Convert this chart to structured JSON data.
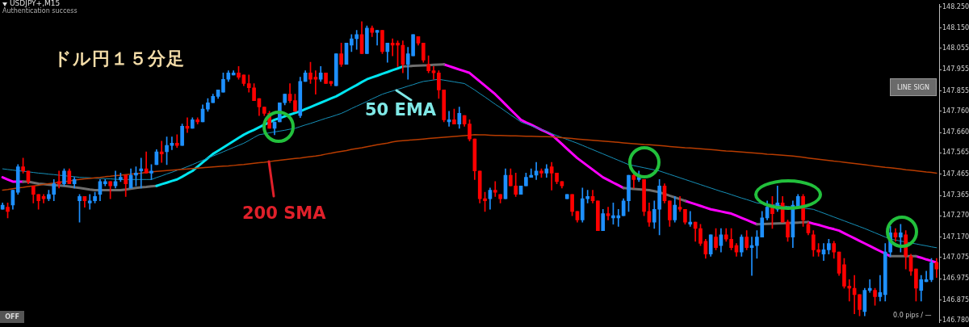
{
  "chart_data": {
    "type": "candlestick",
    "title": "USDJPY+,M15",
    "categories": [
      null,
      null,
      null,
      null,
      null,
      null,
      null,
      null,
      null,
      null,
      null,
      null,
      null,
      null,
      null,
      null,
      null,
      null,
      null,
      null,
      null,
      null,
      null,
      null,
      null,
      null,
      null,
      null,
      null,
      null,
      null,
      null,
      null,
      null,
      null,
      null,
      null,
      null,
      null,
      null,
      null,
      null,
      null,
      null,
      null,
      null,
      null,
      null,
      null,
      null,
      null,
      null,
      null,
      null,
      null,
      null,
      null,
      null,
      null,
      null,
      null,
      null,
      null,
      null,
      null,
      null,
      null,
      null,
      null,
      null,
      null,
      null,
      null,
      null,
      null,
      null,
      null,
      null,
      null,
      null,
      null,
      null,
      null,
      null,
      null,
      null,
      null,
      null,
      null,
      null,
      null,
      null,
      null,
      null,
      null,
      null,
      null,
      null,
      null,
      null,
      null,
      null,
      null,
      null,
      null,
      null,
      null,
      null,
      null,
      null,
      null,
      null,
      null,
      null,
      null,
      null,
      null,
      null,
      null,
      null,
      null,
      null,
      null,
      null,
      null,
      null,
      null,
      null,
      null,
      null,
      null,
      null,
      null,
      null,
      null,
      null,
      null,
      null,
      null,
      null,
      null,
      null,
      null,
      null,
      null,
      null,
      null,
      null,
      null,
      null,
      null,
      null,
      null,
      null,
      null,
      null,
      null,
      null,
      null,
      null,
      null,
      null,
      null,
      null,
      null,
      null,
      null,
      null,
      null,
      null,
      null,
      null,
      null,
      null,
      null,
      null,
      null,
      null,
      null,
      null,
      null,
      null,
      null
    ],
    "ohlc": [
      [
        147.3,
        147.33,
        147.3,
        147.32
      ],
      [
        147.31,
        147.33,
        147.26,
        147.29
      ],
      [
        147.32,
        147.39,
        147.3,
        147.39
      ],
      [
        147.38,
        147.51,
        147.37,
        147.5
      ],
      [
        147.5,
        147.54,
        147.47,
        147.48
      ],
      [
        147.48,
        147.48,
        147.42,
        147.43
      ],
      [
        147.41,
        147.41,
        147.33,
        147.37
      ],
      [
        147.37,
        147.37,
        147.3,
        147.34
      ],
      [
        147.36,
        147.37,
        147.33,
        147.35
      ],
      [
        147.35,
        147.39,
        147.34,
        147.37
      ],
      [
        147.37,
        147.44,
        147.34,
        147.42
      ],
      [
        147.43,
        147.48,
        147.4,
        147.42
      ],
      [
        147.42,
        147.49,
        147.41,
        147.48
      ],
      [
        147.48,
        147.49,
        147.42,
        147.42
      ],
      [
        147.42,
        147.45,
        147.4,
        147.44
      ],
      [
        147.34,
        147.37,
        147.24,
        147.36
      ],
      [
        147.36,
        147.36,
        147.31,
        147.34
      ],
      [
        147.33,
        147.37,
        147.3,
        147.34
      ],
      [
        147.34,
        147.38,
        147.33,
        147.36
      ],
      [
        147.37,
        147.44,
        147.34,
        147.43
      ],
      [
        147.42,
        147.44,
        147.41,
        147.43
      ],
      [
        147.43,
        147.43,
        147.35,
        147.41
      ],
      [
        147.41,
        147.48,
        147.4,
        147.43
      ],
      [
        147.44,
        147.47,
        147.43,
        147.45
      ],
      [
        147.46,
        147.46,
        147.36,
        147.42
      ],
      [
        147.4,
        147.49,
        147.4,
        147.46
      ],
      [
        147.46,
        147.5,
        147.41,
        147.47
      ],
      [
        147.48,
        147.54,
        147.4,
        147.49
      ],
      [
        147.49,
        147.57,
        147.47,
        147.47
      ],
      [
        147.47,
        147.51,
        147.44,
        147.48
      ],
      [
        147.51,
        147.58,
        147.51,
        147.57
      ],
      [
        147.57,
        147.62,
        147.52,
        147.56
      ],
      [
        147.57,
        147.64,
        147.51,
        147.6
      ],
      [
        147.6,
        147.64,
        147.58,
        147.61
      ],
      [
        147.61,
        147.65,
        147.59,
        147.6
      ],
      [
        147.6,
        147.7,
        147.6,
        147.69
      ],
      [
        147.69,
        147.73,
        147.66,
        147.68
      ],
      [
        147.68,
        147.73,
        147.68,
        147.72
      ],
      [
        147.72,
        147.73,
        147.7,
        147.71
      ],
      [
        147.71,
        147.79,
        147.71,
        147.77
      ],
      [
        147.77,
        147.82,
        147.76,
        147.8
      ],
      [
        147.8,
        147.84,
        147.8,
        147.83
      ],
      [
        147.83,
        147.86,
        147.82,
        147.86
      ],
      [
        147.85,
        147.94,
        147.85,
        147.91
      ],
      [
        147.91,
        147.95,
        147.9,
        147.94
      ],
      [
        147.93,
        147.95,
        147.93,
        147.94
      ],
      [
        147.94,
        147.97,
        147.91,
        147.92
      ],
      [
        147.93,
        147.93,
        147.88,
        147.89
      ],
      [
        147.89,
        147.93,
        147.85,
        147.87
      ],
      [
        147.87,
        147.89,
        147.81,
        147.81
      ],
      [
        147.82,
        147.82,
        147.74,
        147.78
      ],
      [
        147.78,
        147.78,
        147.74,
        147.75
      ],
      [
        147.75,
        147.76,
        147.68,
        147.68
      ],
      [
        147.68,
        147.71,
        147.65,
        147.71
      ],
      [
        147.71,
        147.8,
        147.71,
        147.8
      ],
      [
        147.8,
        147.84,
        147.79,
        147.84
      ],
      [
        147.84,
        147.89,
        147.8,
        147.81
      ],
      [
        147.81,
        147.84,
        147.76,
        147.76
      ],
      [
        147.74,
        147.92,
        147.73,
        147.9
      ],
      [
        147.9,
        147.95,
        147.9,
        147.94
      ],
      [
        147.94,
        147.99,
        147.89,
        147.91
      ],
      [
        147.92,
        147.95,
        147.84,
        147.91
      ],
      [
        147.91,
        147.97,
        147.9,
        147.94
      ],
      [
        147.94,
        147.94,
        147.89,
        147.89
      ],
      [
        147.9,
        147.9,
        147.88,
        147.89
      ],
      [
        147.88,
        148.03,
        147.88,
        148.03
      ],
      [
        148.03,
        148.08,
        147.97,
        147.98
      ],
      [
        147.98,
        148.08,
        147.98,
        148.08
      ],
      [
        148.07,
        148.12,
        148.04,
        148.1
      ],
      [
        148.1,
        148.14,
        148.05,
        148.12
      ],
      [
        148.12,
        148.18,
        148.03,
        148.03
      ],
      [
        148.03,
        148.16,
        148.03,
        148.15
      ],
      [
        148.15,
        148.16,
        148.11,
        148.13
      ],
      [
        148.13,
        148.14,
        148.07,
        148.14
      ],
      [
        148.14,
        148.14,
        148.03,
        148.04
      ],
      [
        148.04,
        148.08,
        147.99,
        148.08
      ],
      [
        148.08,
        148.1,
        148.02,
        148.07
      ],
      [
        148.08,
        148.09,
        147.97,
        148.07
      ],
      [
        148.07,
        148.09,
        147.94,
        147.98
      ],
      [
        147.98,
        148.06,
        147.91,
        148.03
      ],
      [
        148.02,
        148.12,
        148.02,
        148.12
      ],
      [
        148.11,
        148.11,
        148.07,
        148.08
      ],
      [
        148.08,
        148.08,
        147.99,
        148.0
      ],
      [
        147.98,
        148.02,
        147.94,
        147.95
      ],
      [
        147.95,
        147.97,
        147.91,
        147.94
      ],
      [
        147.94,
        147.95,
        147.82,
        147.86
      ],
      [
        147.86,
        147.86,
        147.71,
        147.72
      ],
      [
        147.71,
        147.76,
        147.69,
        147.72
      ],
      [
        147.72,
        147.77,
        147.7,
        147.7
      ],
      [
        147.7,
        147.78,
        147.68,
        147.75
      ],
      [
        147.74,
        147.74,
        147.69,
        147.7
      ],
      [
        147.7,
        147.72,
        147.62,
        147.63
      ],
      [
        147.63,
        147.63,
        147.44,
        147.48
      ],
      [
        147.48,
        147.48,
        147.33,
        147.35
      ],
      [
        147.35,
        147.38,
        147.29,
        147.34
      ],
      [
        147.35,
        147.4,
        147.3,
        147.39
      ],
      [
        147.39,
        147.43,
        147.36,
        147.38
      ],
      [
        147.37,
        147.37,
        147.33,
        147.35
      ],
      [
        147.35,
        147.49,
        147.35,
        147.46
      ],
      [
        147.46,
        147.49,
        147.41,
        147.41
      ],
      [
        147.41,
        147.47,
        147.36,
        147.37
      ],
      [
        147.37,
        147.41,
        147.37,
        147.41
      ],
      [
        147.41,
        147.47,
        147.41,
        147.45
      ],
      [
        147.45,
        147.49,
        147.45,
        147.46
      ],
      [
        147.46,
        147.52,
        147.44,
        147.48
      ],
      [
        147.48,
        147.49,
        147.45,
        147.47
      ],
      [
        147.47,
        147.51,
        147.45,
        147.49
      ],
      [
        147.5,
        147.52,
        147.39,
        147.47
      ],
      [
        147.47,
        147.47,
        147.42,
        147.43
      ],
      [
        147.43,
        147.43,
        147.4,
        147.41
      ],
      [
        147.35,
        147.37,
        147.35,
        147.37
      ],
      [
        147.37,
        147.37,
        147.27,
        147.29
      ],
      [
        147.29,
        147.29,
        147.24,
        147.25
      ],
      [
        147.25,
        147.4,
        147.24,
        147.35
      ],
      [
        147.35,
        147.39,
        147.33,
        147.36
      ],
      [
        147.36,
        147.39,
        147.33,
        147.34
      ],
      [
        147.34,
        147.34,
        147.2,
        147.2
      ],
      [
        147.2,
        147.3,
        147.2,
        147.28
      ],
      [
        147.28,
        147.31,
        147.25,
        147.27
      ],
      [
        147.26,
        147.33,
        147.23,
        147.27
      ],
      [
        147.26,
        147.3,
        147.22,
        147.27
      ],
      [
        147.27,
        147.35,
        147.27,
        147.34
      ],
      [
        147.34,
        147.46,
        147.29,
        147.46
      ],
      [
        147.46,
        147.47,
        147.4,
        147.44
      ],
      [
        147.44,
        147.48,
        147.43,
        147.45
      ],
      [
        147.44,
        147.44,
        147.27,
        147.29
      ],
      [
        147.29,
        147.33,
        147.22,
        147.24
      ],
      [
        147.24,
        147.34,
        147.21,
        147.3
      ],
      [
        147.3,
        147.44,
        147.18,
        147.41
      ],
      [
        147.41,
        147.42,
        147.33,
        147.34
      ],
      [
        147.34,
        147.34,
        147.22,
        147.25
      ],
      [
        147.25,
        147.36,
        147.24,
        147.32
      ],
      [
        147.31,
        147.36,
        147.29,
        147.3
      ],
      [
        147.3,
        147.3,
        147.23,
        147.24
      ],
      [
        147.23,
        147.29,
        147.22,
        147.24
      ],
      [
        147.24,
        147.24,
        147.15,
        147.21
      ],
      [
        147.21,
        147.23,
        147.13,
        147.14
      ],
      [
        147.15,
        147.16,
        147.07,
        147.09
      ],
      [
        147.09,
        147.18,
        147.08,
        147.18
      ],
      [
        147.17,
        147.21,
        147.11,
        147.12
      ],
      [
        147.13,
        147.21,
        147.1,
        147.18
      ],
      [
        147.18,
        147.21,
        147.15,
        147.16
      ],
      [
        147.16,
        147.21,
        147.11,
        147.12
      ],
      [
        147.13,
        147.14,
        147.08,
        147.1
      ],
      [
        147.1,
        147.18,
        147.08,
        147.17
      ],
      [
        147.17,
        147.2,
        147.11,
        147.12
      ],
      [
        147.12,
        147.17,
        146.99,
        147.13
      ],
      [
        147.13,
        147.2,
        147.07,
        147.17
      ],
      [
        147.17,
        147.29,
        147.17,
        147.26
      ],
      [
        147.26,
        147.34,
        147.25,
        147.31
      ],
      [
        147.31,
        147.36,
        147.21,
        147.28
      ],
      [
        147.3,
        147.41,
        147.29,
        147.33
      ],
      [
        147.33,
        147.36,
        147.24,
        147.24
      ],
      [
        147.24,
        147.25,
        147.15,
        147.17
      ],
      [
        147.17,
        147.34,
        147.12,
        147.32
      ],
      [
        147.31,
        147.37,
        147.31,
        147.36
      ],
      [
        147.36,
        147.37,
        147.22,
        147.25
      ],
      [
        147.23,
        147.24,
        147.18,
        147.19
      ],
      [
        147.18,
        147.2,
        147.08,
        147.11
      ],
      [
        147.11,
        147.14,
        147.08,
        147.1
      ],
      [
        147.09,
        147.14,
        147.06,
        147.11
      ],
      [
        147.11,
        147.16,
        147.09,
        147.14
      ],
      [
        147.14,
        147.15,
        147.07,
        147.1
      ],
      [
        147.1,
        147.1,
        146.99,
        147.0
      ],
      [
        147.04,
        147.07,
        146.93,
        146.94
      ],
      [
        146.94,
        146.97,
        146.87,
        146.93
      ],
      [
        146.93,
        146.99,
        146.81,
        146.9
      ],
      [
        146.9,
        146.9,
        146.8,
        146.83
      ],
      [
        146.82,
        146.93,
        146.8,
        146.92
      ],
      [
        146.92,
        146.97,
        146.91,
        146.93
      ],
      [
        146.92,
        146.93,
        146.85,
        146.89
      ],
      [
        146.89,
        146.99,
        146.87,
        146.91
      ],
      [
        146.9,
        147.14,
        146.87,
        147.1
      ],
      [
        147.1,
        147.22,
        147.08,
        147.19
      ],
      [
        147.19,
        147.21,
        147.15,
        147.17
      ],
      [
        147.17,
        147.23,
        147.1,
        147.19
      ],
      [
        147.18,
        147.2,
        147.02,
        147.08
      ],
      [
        147.08,
        147.09,
        146.99,
        147.01
      ],
      [
        147.02,
        147.02,
        146.87,
        146.93
      ],
      [
        146.92,
        146.99,
        146.87,
        146.97
      ],
      [
        146.96,
        147.01,
        146.96,
        146.97
      ],
      [
        146.97,
        147.07,
        146.96,
        147.05
      ],
      [
        147.05,
        147.07,
        146.98,
        147.02
      ]
    ],
    "series": [
      {
        "type": "line",
        "color": "#b83c00",
        "values": [
          147.39,
          147.393,
          147.397,
          147.4,
          147.403,
          147.407,
          147.41,
          147.413,
          147.417,
          147.42,
          147.423,
          147.427,
          147.43,
          147.433,
          147.437,
          147.44,
          147.443,
          147.445,
          147.448,
          147.45,
          147.453,
          147.455,
          147.458,
          147.46,
          147.463,
          147.465,
          147.468,
          147.47,
          147.473,
          147.475,
          147.478,
          147.48,
          147.482,
          147.484,
          147.486,
          147.488,
          147.489,
          147.491,
          147.493,
          147.495,
          147.497,
          147.499,
          147.501,
          147.503,
          147.504,
          147.506,
          147.508,
          147.51,
          147.513,
          147.516,
          147.519,
          147.521,
          147.524,
          147.527,
          147.53,
          147.533,
          147.536,
          147.539,
          147.541,
          147.544,
          147.547,
          147.55,
          147.554,
          147.559,
          147.563,
          147.568,
          147.572,
          147.576,
          147.581,
          147.585,
          147.589,
          147.594,
          147.598,
          147.603,
          147.607,
          147.611,
          147.616,
          147.62,
          147.622,
          147.624,
          147.626,
          147.628,
          147.63,
          147.632,
          147.634,
          147.636,
          147.638,
          147.64,
          147.642,
          147.644,
          147.646,
          147.648,
          147.65,
          147.649,
          147.649,
          147.648,
          147.647,
          147.647,
          147.646,
          147.645,
          147.645,
          147.644,
          147.643,
          147.643,
          147.642,
          147.641,
          147.641,
          147.64,
          147.638,
          147.636,
          147.634,
          147.632,
          147.63,
          147.628,
          147.626,
          147.624,
          147.622,
          147.62,
          147.618,
          147.616,
          147.614,
          147.612,
          147.61,
          147.608,
          147.606,
          147.604,
          147.603,
          147.601,
          147.599,
          147.597,
          147.595,
          147.593,
          147.591,
          147.589,
          147.588,
          147.586,
          147.584,
          147.582,
          147.58,
          147.578,
          147.576,
          147.574,
          147.573,
          147.571,
          147.569,
          147.567,
          147.565,
          147.563,
          147.561,
          147.559,
          147.558,
          147.556,
          147.554,
          147.552,
          147.55,
          147.547,
          147.544,
          147.541,
          147.538,
          147.535,
          147.532,
          147.529,
          147.526,
          147.524,
          147.521,
          147.518,
          147.515,
          147.512,
          147.509,
          147.506,
          147.503,
          147.5,
          147.497,
          147.495,
          147.492,
          147.489,
          147.486,
          147.484,
          147.481,
          147.478,
          147.475,
          147.473,
          147.47
        ]
      },
      {
        "type": "line",
        "color": "#1690b8",
        "values": [
          147.49,
          147.487,
          147.484,
          147.481,
          147.479,
          147.476,
          147.473,
          147.47,
          147.468,
          147.465,
          147.463,
          147.46,
          147.458,
          147.455,
          147.453,
          147.45,
          147.449,
          147.448,
          147.446,
          147.445,
          147.444,
          147.443,
          147.441,
          147.44,
          147.44,
          147.44,
          147.44,
          147.44,
          147.44,
          147.44,
          147.449,
          147.457,
          147.466,
          147.474,
          147.483,
          147.491,
          147.5,
          147.51,
          147.52,
          147.53,
          147.54,
          147.55,
          147.56,
          147.57,
          147.58,
          147.59,
          147.6,
          147.61,
          147.623,
          147.637,
          147.65,
          147.654,
          147.659,
          147.663,
          147.667,
          147.671,
          147.676,
          147.68,
          147.688,
          147.696,
          147.703,
          147.711,
          147.719,
          147.727,
          147.734,
          147.742,
          147.75,
          147.761,
          147.773,
          147.784,
          147.795,
          147.806,
          147.818,
          147.829,
          147.84,
          147.848,
          147.855,
          147.863,
          147.87,
          147.878,
          147.885,
          147.893,
          147.9,
          147.903,
          147.907,
          147.91,
          147.906,
          147.902,
          147.898,
          147.894,
          147.89,
          147.875,
          147.86,
          147.843,
          147.827,
          147.81,
          147.793,
          147.777,
          147.76,
          147.743,
          147.727,
          147.71,
          147.701,
          147.692,
          147.683,
          147.674,
          147.665,
          147.655,
          147.646,
          147.637,
          147.628,
          147.619,
          147.61,
          147.6,
          147.59,
          147.58,
          147.57,
          147.56,
          147.55,
          147.54,
          147.53,
          147.52,
          147.51,
          147.505,
          147.5,
          147.495,
          147.49,
          147.485,
          147.48,
          147.472,
          147.464,
          147.456,
          147.448,
          147.44,
          147.432,
          147.424,
          147.416,
          147.408,
          147.4,
          147.392,
          147.384,
          147.377,
          147.369,
          147.361,
          147.353,
          147.346,
          147.338,
          147.33,
          147.327,
          147.325,
          147.322,
          147.319,
          147.316,
          147.314,
          147.311,
          147.308,
          147.305,
          147.303,
          147.3,
          147.291,
          147.282,
          147.273,
          147.264,
          147.255,
          147.246,
          147.237,
          147.228,
          147.219,
          147.21,
          147.2,
          147.19,
          147.18,
          147.17,
          147.16,
          147.156,
          147.151,
          147.147,
          147.142,
          147.138,
          147.133,
          147.129,
          147.124,
          147.12
        ]
      },
      {
        "type": "line",
        "color": "#00e5f0",
        "values": [
          null,
          null,
          null,
          null,
          null,
          null,
          null,
          null,
          null,
          null,
          null,
          null,
          null,
          null,
          null,
          null,
          null,
          null,
          null,
          null,
          null,
          null,
          null,
          null,
          null,
          null,
          null,
          null,
          null,
          null,
          147.41,
          147.418,
          147.425,
          147.433,
          147.44,
          147.453,
          147.467,
          147.48,
          147.5,
          147.52,
          147.54,
          147.56,
          147.575,
          147.59,
          147.605,
          147.62,
          147.635,
          147.65,
          147.662,
          147.673,
          147.685,
          147.697,
          147.708,
          147.72,
          147.728,
          147.736,
          147.744,
          147.752,
          147.76,
          147.77,
          147.78,
          147.79,
          147.8,
          147.81,
          147.82,
          147.83,
          147.843,
          147.857,
          147.87,
          147.883,
          147.897,
          147.91,
          147.919,
          147.927,
          147.936,
          147.944,
          147.953,
          147.961,
          147.97,
          null,
          null,
          null,
          null,
          null,
          null,
          null,
          null,
          null,
          null,
          null,
          null,
          null,
          null,
          null,
          null,
          null,
          null,
          null,
          null,
          null,
          null,
          null,
          null,
          null,
          null,
          null,
          null,
          null,
          null,
          null,
          null,
          null,
          null,
          null,
          null,
          null,
          null,
          null,
          null,
          null,
          null,
          null,
          null,
          null,
          null,
          null,
          null,
          null,
          null,
          null,
          null,
          null,
          null,
          null,
          null,
          null,
          null,
          null,
          null,
          null,
          null,
          null,
          null,
          null,
          null,
          null,
          null,
          null,
          null,
          null,
          null,
          null,
          null,
          null,
          null,
          null,
          null,
          null,
          null,
          null,
          null,
          null,
          null,
          null,
          null,
          null,
          null,
          null,
          null,
          null,
          null,
          null,
          null,
          null,
          null,
          null,
          null,
          null,
          null,
          null,
          null,
          null,
          null
        ]
      },
      {
        "type": "line",
        "color": "#6e6e6e",
        "values": [
          null,
          null,
          null,
          null,
          147.43,
          147.43,
          147.425,
          147.42,
          147.418,
          147.416,
          147.414,
          147.412,
          147.41,
          147.407,
          147.403,
          147.4,
          147.397,
          147.393,
          147.39,
          147.39,
          147.39,
          147.39,
          147.39,
          147.39,
          147.393,
          147.397,
          147.4,
          147.403,
          147.405,
          147.408,
          147.41,
          null,
          null,
          null,
          null,
          null,
          null,
          null,
          null,
          null,
          null,
          null,
          null,
          null,
          null,
          null,
          null,
          null,
          null,
          null,
          null,
          null,
          null,
          null,
          null,
          null,
          null,
          null,
          null,
          null,
          null,
          null,
          null,
          null,
          null,
          null,
          null,
          null,
          null,
          null,
          null,
          null,
          null,
          null,
          null,
          null,
          null,
          null,
          147.97,
          147.971,
          147.973,
          147.974,
          147.975,
          147.976,
          147.978,
          147.979,
          147.98,
          null,
          null,
          null,
          null,
          null,
          null,
          null,
          null,
          null,
          null,
          null,
          null,
          null,
          null,
          null,
          null,
          null,
          null,
          null,
          null,
          null,
          null,
          null,
          null,
          null,
          null,
          null,
          null,
          null,
          null,
          null,
          null,
          null,
          null,
          147.4,
          147.398,
          147.396,
          147.394,
          147.392,
          147.39,
          147.385,
          147.38,
          147.372,
          147.364,
          147.356,
          147.348,
          147.34,
          null,
          null,
          null,
          null,
          null,
          null,
          null,
          null,
          null,
          null,
          null,
          null,
          null,
          147.23,
          147.231,
          147.232,
          147.233,
          147.234,
          147.235,
          147.236,
          147.237,
          147.238,
          147.239,
          147.24,
          null,
          null,
          null,
          null,
          null,
          null,
          null,
          null,
          null,
          null,
          null,
          null,
          null,
          null,
          null,
          147.08,
          147.08,
          147.08,
          147.08,
          147.08,
          147.08,
          null,
          null,
          null,
          null
        ]
      },
      {
        "type": "line",
        "color": "#ff00ff",
        "values": [
          147.45,
          147.44,
          147.43,
          147.43,
          147.43,
          null,
          null,
          null,
          null,
          null,
          null,
          null,
          null,
          null,
          null,
          null,
          null,
          null,
          null,
          null,
          null,
          null,
          null,
          null,
          null,
          null,
          null,
          null,
          null,
          null,
          null,
          null,
          null,
          null,
          null,
          null,
          null,
          null,
          null,
          null,
          null,
          null,
          null,
          null,
          null,
          null,
          null,
          null,
          null,
          null,
          null,
          null,
          null,
          null,
          null,
          null,
          null,
          null,
          null,
          null,
          null,
          null,
          null,
          null,
          null,
          null,
          null,
          null,
          null,
          null,
          null,
          null,
          null,
          null,
          null,
          null,
          null,
          null,
          null,
          null,
          null,
          null,
          null,
          null,
          null,
          null,
          147.98,
          147.972,
          147.964,
          147.956,
          147.948,
          147.94,
          147.92,
          147.9,
          147.88,
          147.86,
          147.84,
          147.816,
          147.792,
          147.768,
          147.744,
          147.72,
          147.708,
          147.697,
          147.685,
          147.673,
          147.662,
          147.65,
          147.628,
          147.606,
          147.584,
          147.562,
          147.54,
          147.522,
          147.504,
          147.486,
          147.468,
          147.45,
          147.438,
          147.425,
          147.413,
          147.4,
          null,
          null,
          null,
          null,
          null,
          null,
          null,
          null,
          null,
          null,
          null,
          147.34,
          147.332,
          147.324,
          147.316,
          147.308,
          147.3,
          147.295,
          147.29,
          147.285,
          147.28,
          147.27,
          147.26,
          147.25,
          147.24,
          147.23,
          null,
          null,
          null,
          null,
          null,
          null,
          null,
          null,
          null,
          147.24,
          147.233,
          147.227,
          147.22,
          147.213,
          147.207,
          147.2,
          147.188,
          147.176,
          147.164,
          147.152,
          147.14,
          147.128,
          147.116,
          147.104,
          147.092,
          147.08,
          null,
          null,
          null,
          null,
          147.08,
          147.073,
          147.065,
          147.058,
          147.05
        ]
      }
    ],
    "ylim": [
      146.77,
      148.26
    ],
    "yticks": [
      {
        "value": 148.25,
        "label": "148.250"
      },
      {
        "value": 148.15,
        "label": "148.150"
      },
      {
        "value": 148.055,
        "label": "148.055"
      },
      {
        "value": 147.955,
        "label": "147.955"
      },
      {
        "value": 147.855,
        "label": "147.855"
      },
      {
        "value": 147.76,
        "label": "147.760"
      },
      {
        "value": 147.66,
        "label": "147.660"
      },
      {
        "value": 147.565,
        "label": "147.565"
      },
      {
        "value": 147.465,
        "label": "147.465"
      },
      {
        "value": 147.365,
        "label": "147.365"
      },
      {
        "value": 147.27,
        "label": "147.270"
      },
      {
        "value": 147.17,
        "label": "147.170"
      },
      {
        "value": 147.075,
        "label": "147.075"
      },
      {
        "value": 146.975,
        "label": "146.975"
      },
      {
        "value": 146.875,
        "label": "146.875"
      },
      {
        "value": 146.78,
        "label": "146.780"
      }
    ],
    "annotations": [
      "ドル円１５分足",
      "50 EMA",
      "200 SMA",
      "Authentication success",
      "LINE SIGN",
      "OFF",
      "0.0 pips / —"
    ]
  }
}
